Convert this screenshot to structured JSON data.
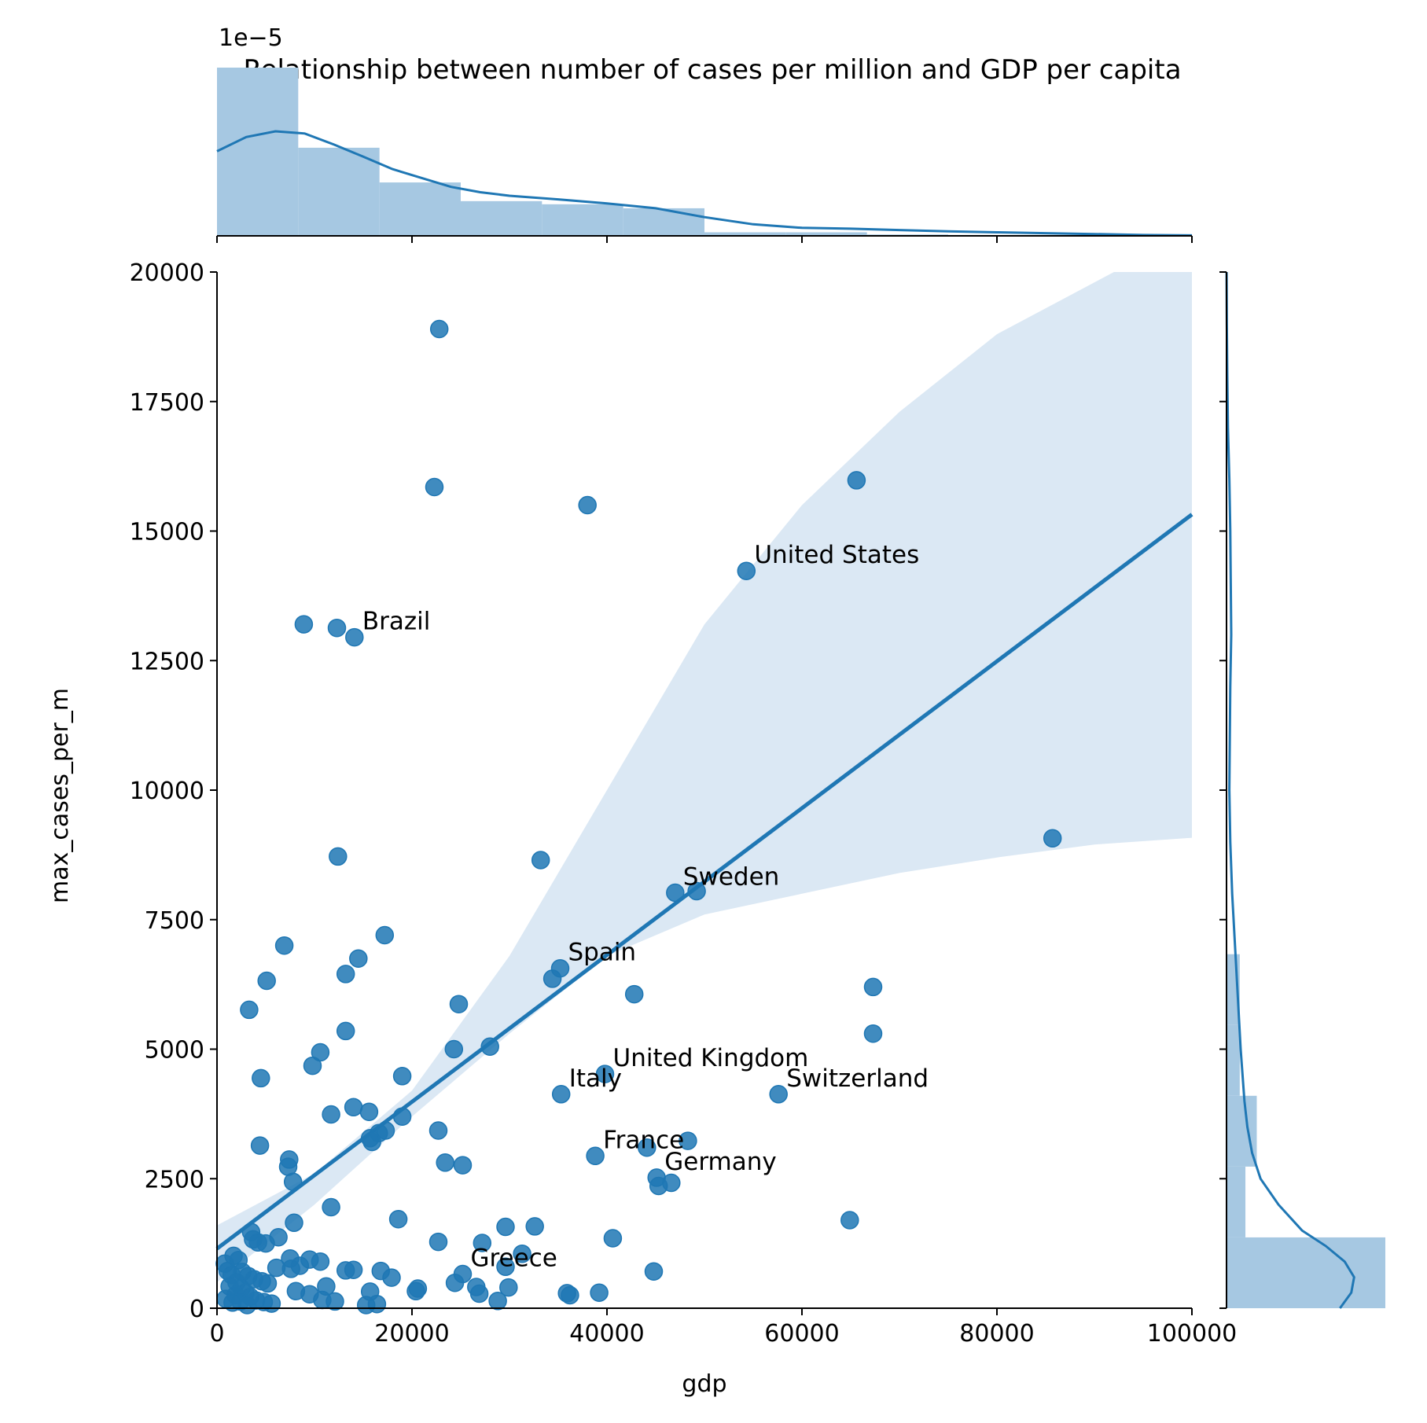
{
  "chart_data": {
    "type": "scatter",
    "title": "Relationship between number of cases per million and GDP per capita",
    "xlabel": "gdp",
    "ylabel": "max_cases_per_m",
    "xlim": [
      0,
      100000
    ],
    "ylim": [
      0,
      20000
    ],
    "x_ticks": [
      0,
      20000,
      40000,
      60000,
      80000,
      100000
    ],
    "y_ticks": [
      0,
      2500,
      5000,
      7500,
      10000,
      12500,
      15000,
      17500,
      20000
    ],
    "x_tick_labels": [
      "0",
      "20000",
      "40000",
      "60000",
      "80000",
      "100000"
    ],
    "y_tick_labels": [
      "0",
      "2500",
      "5000",
      "7500",
      "10000",
      "12500",
      "15000",
      "17500",
      "20000"
    ],
    "top_axis_offset_label": "1e−5",
    "grid": false,
    "colors": {
      "points": "#1f77b4",
      "band": "#dbe8f4",
      "hist": "#a6c8e2"
    },
    "points": [
      [
        22800,
        18900
      ],
      [
        22300,
        15850
      ],
      [
        38000,
        15500
      ],
      [
        65600,
        15980
      ],
      [
        54300,
        14230
      ],
      [
        8900,
        13200
      ],
      [
        12300,
        13130
      ],
      [
        14100,
        12950
      ],
      [
        85700,
        9070
      ],
      [
        12400,
        8720
      ],
      [
        33200,
        8650
      ],
      [
        47000,
        8020
      ],
      [
        49200,
        8050
      ],
      [
        6900,
        7000
      ],
      [
        17200,
        7200
      ],
      [
        5100,
        6320
      ],
      [
        13200,
        6450
      ],
      [
        14500,
        6750
      ],
      [
        34400,
        6360
      ],
      [
        35200,
        6560
      ],
      [
        42800,
        6060
      ],
      [
        67300,
        6200
      ],
      [
        3300,
        5760
      ],
      [
        24800,
        5870
      ],
      [
        13200,
        5350
      ],
      [
        67300,
        5300
      ],
      [
        28000,
        5050
      ],
      [
        24300,
        5000
      ],
      [
        10600,
        4940
      ],
      [
        9800,
        4680
      ],
      [
        4500,
        4440
      ],
      [
        19000,
        4480
      ],
      [
        39800,
        4520
      ],
      [
        35300,
        4130
      ],
      [
        57600,
        4130
      ],
      [
        11700,
        3740
      ],
      [
        14000,
        3880
      ],
      [
        15600,
        3790
      ],
      [
        19000,
        3700
      ],
      [
        22700,
        3430
      ],
      [
        17300,
        3430
      ],
      [
        16600,
        3380
      ],
      [
        15700,
        3280
      ],
      [
        15900,
        3210
      ],
      [
        4400,
        3140
      ],
      [
        44100,
        3100
      ],
      [
        48300,
        3230
      ],
      [
        38800,
        2940
      ],
      [
        7400,
        2870
      ],
      [
        7300,
        2730
      ],
      [
        23400,
        2810
      ],
      [
        25200,
        2760
      ],
      [
        45100,
        2520
      ],
      [
        46600,
        2420
      ],
      [
        45300,
        2360
      ],
      [
        7800,
        2440
      ],
      [
        11700,
        1950
      ],
      [
        7900,
        1650
      ],
      [
        18600,
        1720
      ],
      [
        29600,
        1570
      ],
      [
        32600,
        1580
      ],
      [
        64900,
        1700
      ],
      [
        3500,
        1470
      ],
      [
        3700,
        1330
      ],
      [
        4200,
        1270
      ],
      [
        5000,
        1250
      ],
      [
        6300,
        1370
      ],
      [
        22700,
        1280
      ],
      [
        27200,
        1260
      ],
      [
        31300,
        1050
      ],
      [
        40600,
        1350
      ],
      [
        1700,
        1010
      ],
      [
        2200,
        930
      ],
      [
        2600,
        700
      ],
      [
        3200,
        620
      ],
      [
        3800,
        560
      ],
      [
        4600,
        520
      ],
      [
        5200,
        480
      ],
      [
        6100,
        780
      ],
      [
        7500,
        960
      ],
      [
        7600,
        760
      ],
      [
        8500,
        820
      ],
      [
        9500,
        940
      ],
      [
        10600,
        900
      ],
      [
        11200,
        420
      ],
      [
        13200,
        730
      ],
      [
        14000,
        740
      ],
      [
        16800,
        720
      ],
      [
        17900,
        590
      ],
      [
        20400,
        330
      ],
      [
        20600,
        380
      ],
      [
        24400,
        490
      ],
      [
        25200,
        660
      ],
      [
        26600,
        410
      ],
      [
        26900,
        280
      ],
      [
        28800,
        140
      ],
      [
        29900,
        400
      ],
      [
        29600,
        800
      ],
      [
        35900,
        290
      ],
      [
        36200,
        250
      ],
      [
        39200,
        300
      ],
      [
        44800,
        710
      ],
      [
        800,
        860
      ],
      [
        1100,
        720
      ],
      [
        1500,
        640
      ],
      [
        2000,
        500
      ],
      [
        2500,
        380
      ],
      [
        2900,
        300
      ],
      [
        3400,
        220
      ],
      [
        4000,
        150
      ],
      [
        4800,
        120
      ],
      [
        5600,
        90
      ],
      [
        1300,
        420
      ],
      [
        1900,
        250
      ],
      [
        2400,
        130
      ],
      [
        3100,
        60
      ],
      [
        900,
        180
      ],
      [
        1600,
        110
      ],
      [
        8100,
        330
      ],
      [
        9500,
        270
      ],
      [
        10800,
        160
      ],
      [
        12100,
        130
      ],
      [
        15300,
        60
      ],
      [
        15700,
        320
      ],
      [
        16400,
        80
      ]
    ],
    "annotations": [
      {
        "text": "United States",
        "x": 54300,
        "y": 14230
      },
      {
        "text": "Brazil",
        "x": 14100,
        "y": 12950
      },
      {
        "text": "Sweden",
        "x": 47000,
        "y": 8020
      },
      {
        "text": "Spain",
        "x": 35200,
        "y": 6560
      },
      {
        "text": "United Kingdom",
        "x": 39800,
        "y": 4520
      },
      {
        "text": "Italy",
        "x": 35300,
        "y": 4130
      },
      {
        "text": "Switzerland",
        "x": 57600,
        "y": 4130
      },
      {
        "text": "France",
        "x": 38800,
        "y": 2940
      },
      {
        "text": "Germany",
        "x": 45100,
        "y": 2520
      },
      {
        "text": "Greece",
        "x": 25200,
        "y": 660
      }
    ],
    "regression": {
      "line": [
        [
          0,
          1150
        ],
        [
          100000,
          15320
        ]
      ],
      "ci_upper": [
        [
          0,
          1600
        ],
        [
          10000,
          2600
        ],
        [
          20000,
          4200
        ],
        [
          30000,
          6800
        ],
        [
          40000,
          10000
        ],
        [
          50000,
          13200
        ],
        [
          60000,
          15500
        ],
        [
          70000,
          17300
        ],
        [
          80000,
          18800
        ],
        [
          92000,
          20000
        ],
        [
          100000,
          20000
        ]
      ],
      "ci_lower": [
        [
          0,
          500
        ],
        [
          10000,
          2000
        ],
        [
          20000,
          3700
        ],
        [
          30000,
          5300
        ],
        [
          40000,
          6800
        ],
        [
          50000,
          7600
        ],
        [
          60000,
          8000
        ],
        [
          70000,
          8400
        ],
        [
          80000,
          8700
        ],
        [
          90000,
          8950
        ],
        [
          100000,
          9080
        ]
      ]
    },
    "hist_x": {
      "bin_edges": [
        0,
        8333,
        16667,
        25000,
        33333,
        41667,
        50000,
        58333,
        66667,
        75000,
        83333,
        91667,
        100000
      ],
      "density": [
        3.78e-05,
        1.98e-05,
        1.2e-05,
        7.8e-06,
        7.1e-06,
        6.2e-06,
        8e-07,
        8e-07,
        3e-07,
        2e-07,
        2e-07,
        0
      ],
      "kde_x": [
        0,
        3000,
        6000,
        9000,
        12000,
        15000,
        18000,
        21000,
        24000,
        27000,
        30000,
        35000,
        40000,
        45000,
        50000,
        55000,
        60000,
        65000,
        70000,
        75000,
        80000,
        85000,
        90000,
        95000,
        100000
      ],
      "kde_y": [
        1.9e-05,
        2.22e-05,
        2.35e-05,
        2.3e-05,
        2.05e-05,
        1.78e-05,
        1.5e-05,
        1.3e-05,
        1.1e-05,
        9.8e-06,
        9e-06,
        8.2e-06,
        7.3e-06,
        6.2e-06,
        4.2e-06,
        2.6e-06,
        1.8e-06,
        1.6e-06,
        1.3e-06,
        1e-06,
        8e-07,
        6e-07,
        4e-07,
        2e-07,
        1e-07
      ]
    },
    "hist_y": {
      "bin_edges": [
        0,
        1367,
        2733,
        4100,
        5467,
        6833,
        8200,
        9567,
        10933,
        12300,
        13667,
        15033,
        16400,
        17767,
        19133,
        20500
      ],
      "density": [
        0.000168,
        2e-05,
        3.2e-05,
        1.4e-05,
        1.4e-05,
        0,
        0,
        0,
        0,
        0,
        0,
        0,
        0,
        0,
        0
      ],
      "kde_y": [
        0,
        300,
        600,
        900,
        1200,
        1500,
        2000,
        2500,
        3000,
        3500,
        4000,
        5000,
        6000,
        7000,
        8000,
        9000,
        10000,
        11000,
        12000,
        13000,
        14000,
        15000,
        16000,
        17000,
        18000,
        19000,
        20000
      ],
      "kde_x": [
        0.00012,
        0.000132,
        0.000135,
        0.000125,
        0.000105,
        8e-05,
        5.5e-05,
        3.6e-05,
        2.7e-05,
        2.2e-05,
        1.9e-05,
        1.5e-05,
        1.2e-05,
        9e-06,
        6e-06,
        4e-06,
        3e-06,
        3.5e-06,
        4e-06,
        5e-06,
        4.5e-06,
        4e-06,
        3e-06,
        1.5e-06,
        8e-07,
        3e-07,
        1e-07
      ]
    }
  }
}
